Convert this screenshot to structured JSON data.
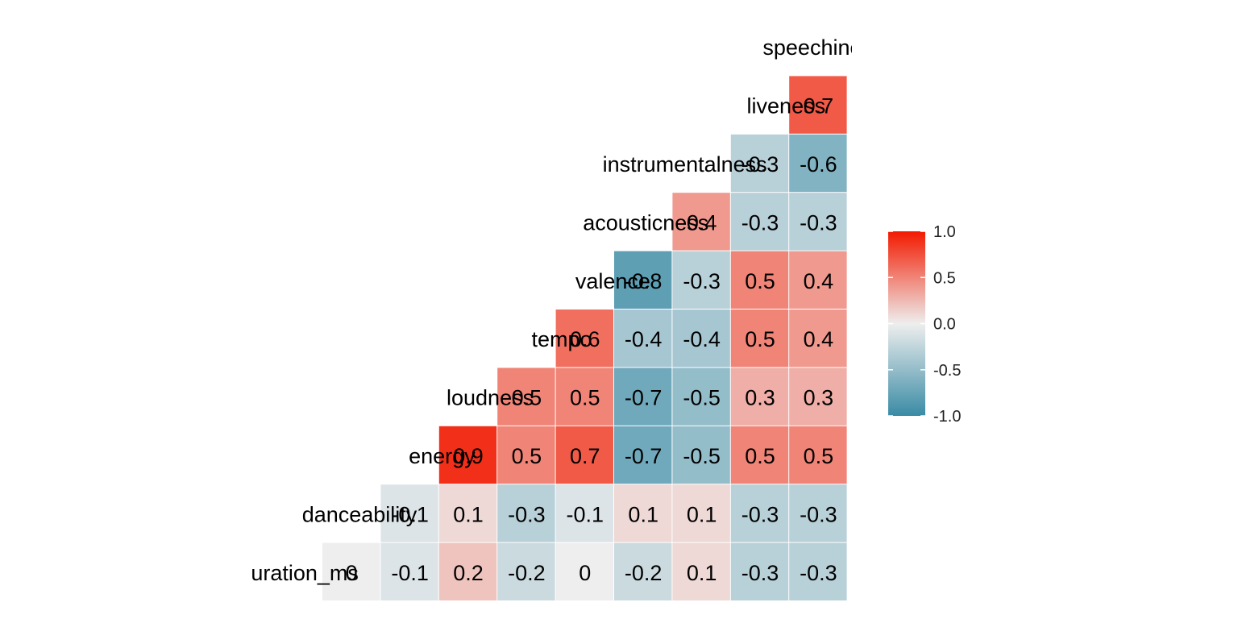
{
  "chart_data": {
    "type": "heatmap",
    "variables": [
      "duration_ms",
      "danceability",
      "energy",
      "loudness",
      "tempo",
      "valence",
      "acousticness",
      "instrumentalness",
      "liveness",
      "speechiness"
    ],
    "cell_labels": [
      [
        "0",
        "-0.1",
        "0.2",
        "-0.2",
        "0",
        "-0.2",
        "0.1",
        "-0.3",
        "-0.3"
      ],
      [
        "-0.1",
        "0.1",
        "-0.3",
        "-0.1",
        "0.1",
        "0.1",
        "-0.3",
        "-0.3"
      ],
      [
        "0.9",
        "0.5",
        "0.7",
        "-0.7",
        "-0.5",
        "0.5",
        "0.5"
      ],
      [
        "0.5",
        "0.5",
        "-0.7",
        "-0.5",
        "0.3",
        "0.3"
      ],
      [
        "0.6",
        "-0.4",
        "-0.4",
        "0.5",
        "0.4"
      ],
      [
        "-0.8",
        "-0.3",
        "0.5",
        "0.4"
      ],
      [
        "0.4",
        "-0.3",
        "-0.3"
      ],
      [
        "-0.3",
        "-0.6"
      ],
      [
        "0.7"
      ]
    ],
    "color_scale": {
      "low": "#3A8BA5",
      "mid": "#EEEEEE",
      "high": "#F21A00",
      "range": [
        -1,
        1
      ],
      "ticks": [
        "1.0",
        "0.5",
        "0.0",
        "-0.5",
        "-1.0"
      ]
    }
  }
}
